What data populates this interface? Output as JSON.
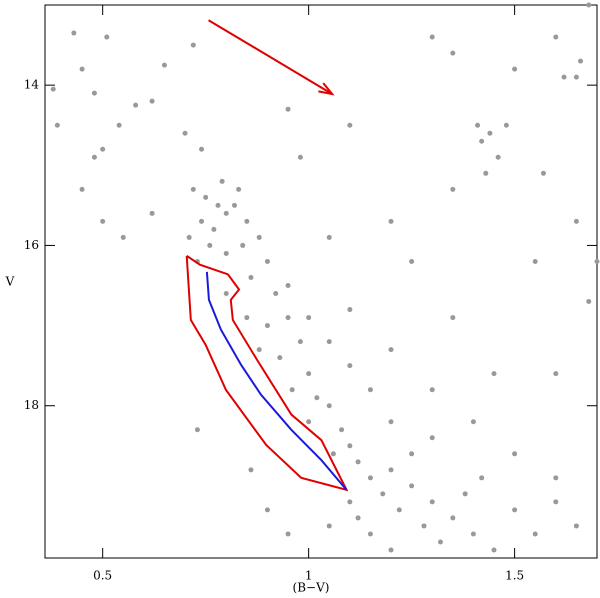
{
  "chart_data": {
    "type": "scatter",
    "x_label": "(B−V)",
    "y_label": "V",
    "xlim": [
      0.36,
      1.7
    ],
    "ylim": [
      13.0,
      19.9
    ],
    "y_inverted": true,
    "xticks": [
      0.5,
      1,
      1.5
    ],
    "yticks": [
      14,
      16,
      18
    ],
    "series": [
      {
        "type": "scatter",
        "color": "#999999",
        "x": [
          0.72,
          0.75,
          0.78,
          0.8,
          0.74,
          0.77,
          0.82,
          0.85,
          0.71,
          0.76,
          0.8,
          0.84,
          0.88,
          0.73,
          0.79,
          0.83,
          0.9,
          0.86,
          0.92,
          0.95,
          0.8,
          0.85,
          0.9,
          0.88,
          0.93,
          0.98,
          1.0,
          0.96,
          1.02,
          1.05,
          1.0,
          1.08,
          1.1,
          1.06,
          1.12,
          1.15,
          1.2,
          1.18,
          1.25,
          1.22,
          1.3,
          1.28,
          1.35,
          1.32,
          1.4,
          1.45,
          1.38,
          1.42,
          1.5,
          1.55,
          1.6,
          1.65,
          1.12,
          1.15,
          1.2,
          1.05,
          1.1,
          1.25,
          1.3,
          1.2,
          1.15,
          1.1,
          1.05,
          1.0,
          0.95,
          1.1,
          1.2,
          1.3,
          1.4,
          1.5,
          1.6,
          1.45,
          1.35,
          0.38,
          0.39,
          0.43,
          0.45,
          0.48,
          0.51,
          0.54,
          0.48,
          0.5,
          0.58,
          0.62,
          0.65,
          0.72,
          0.7,
          0.74,
          0.62,
          0.55,
          0.5,
          0.45,
          0.98,
          1.1,
          1.3,
          1.42,
          1.44,
          1.46,
          1.41,
          1.48,
          1.43,
          1.6,
          1.62,
          1.66,
          1.68,
          1.65,
          1.57,
          1.65,
          1.7,
          1.35,
          1.2,
          1.55,
          1.68,
          1.6,
          0.73,
          0.86,
          0.9,
          0.95,
          1.25,
          1.05,
          0.95,
          1.35,
          1.5
        ],
        "y": [
          15.3,
          15.4,
          15.5,
          15.6,
          15.7,
          15.8,
          15.5,
          15.7,
          15.9,
          16.0,
          16.1,
          16.0,
          15.9,
          16.2,
          15.2,
          15.3,
          16.2,
          16.4,
          16.6,
          16.9,
          16.6,
          16.9,
          17.0,
          17.3,
          17.4,
          17.2,
          17.6,
          17.8,
          17.9,
          18.0,
          18.2,
          18.3,
          18.5,
          18.6,
          18.7,
          18.9,
          18.8,
          19.1,
          19.0,
          19.3,
          19.2,
          19.5,
          19.4,
          19.7,
          19.6,
          19.8,
          19.1,
          18.9,
          19.3,
          19.6,
          19.2,
          19.5,
          19.4,
          19.6,
          19.8,
          19.5,
          19.2,
          18.6,
          18.4,
          18.2,
          17.8,
          17.5,
          17.2,
          16.9,
          16.5,
          16.8,
          17.3,
          17.8,
          18.2,
          18.6,
          18.9,
          17.6,
          16.9,
          14.05,
          14.5,
          13.35,
          13.8,
          14.1,
          13.4,
          14.5,
          14.9,
          14.8,
          14.25,
          14.2,
          13.75,
          13.5,
          14.6,
          14.8,
          15.6,
          15.9,
          15.7,
          15.3,
          14.9,
          14.5,
          13.4,
          14.7,
          14.6,
          14.9,
          14.5,
          14.5,
          15.1,
          13.4,
          13.9,
          13.7,
          13.0,
          13.9,
          15.1,
          15.7,
          16.2,
          15.3,
          15.7,
          16.2,
          16.7,
          17.6,
          18.3,
          18.8,
          19.3,
          19.6,
          16.2,
          15.9,
          14.3,
          13.6,
          13.8
        ]
      },
      {
        "type": "line",
        "color": "#e00000",
        "x": [
          0.704,
          0.736,
          0.804,
          0.831,
          0.811,
          0.816,
          0.875,
          0.958,
          1.031,
          1.092,
          0.982,
          0.897,
          0.799,
          0.75,
          0.714,
          0.704
        ],
        "y": [
          16.13,
          16.24,
          16.36,
          16.55,
          16.68,
          16.93,
          17.43,
          18.11,
          18.43,
          19.05,
          18.9,
          18.49,
          17.8,
          17.24,
          16.93,
          16.13
        ]
      },
      {
        "type": "line",
        "color": "#1a1adc",
        "x": [
          0.753,
          0.758,
          0.787,
          0.836,
          0.884,
          0.958,
          1.031,
          1.092
        ],
        "y": [
          16.33,
          16.68,
          17.05,
          17.49,
          17.86,
          18.3,
          18.68,
          19.05
        ]
      },
      {
        "type": "arrow",
        "color": "#e00000",
        "x": [
          0.757,
          1.057
        ],
        "y": [
          13.19,
          14.11
        ]
      }
    ]
  }
}
